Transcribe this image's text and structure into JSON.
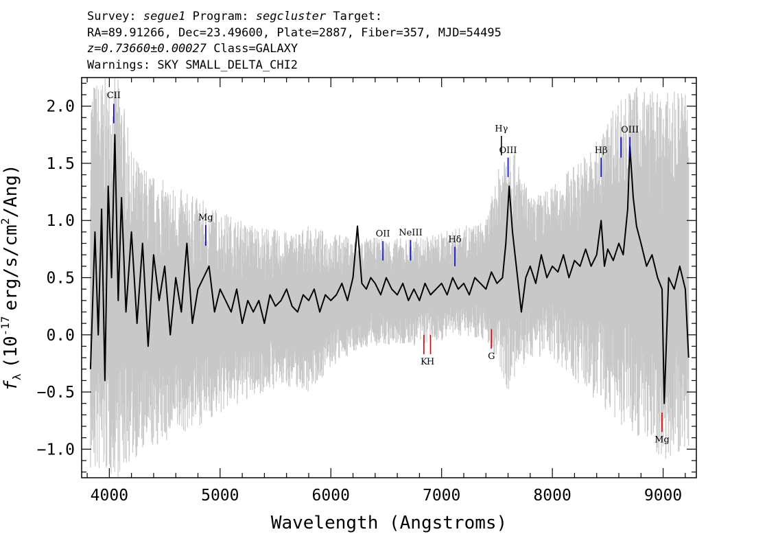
{
  "header": {
    "survey_label": "Survey:",
    "survey": "segue1",
    "program_label": "Program:",
    "program": "segcluster",
    "target_label": "Target:",
    "line2": "RA=89.91266, Dec=23.49600, Plate=2887, Fiber=357, MJD=54495",
    "redshift": "z=0.73660±0.00027",
    "class_text": "Class=GALAXY",
    "warnings": "Warnings: SKY SMALL_DELTA_CHI2"
  },
  "chart_data": {
    "type": "line",
    "xlabel": "Wavelength (Angstroms)",
    "ylabel_prefix": "f",
    "ylabel_sub": "λ",
    "ylabel_body": "(10",
    "ylabel_exp": "-17",
    "ylabel_unit": "erg/s/cm",
    "ylabel_unit_exp": "2",
    "ylabel_tail": "/Ang)",
    "xlim": [
      3750,
      9300
    ],
    "ylim": [
      -1.25,
      2.25
    ],
    "xticks": [
      4000,
      5000,
      6000,
      7000,
      8000,
      9000
    ],
    "xtick_labels": [
      "4000",
      "5000",
      "6000",
      "7000",
      "8000",
      "9000"
    ],
    "yticks": [
      -1.0,
      -0.5,
      0.0,
      0.5,
      1.0,
      1.5,
      2.0
    ],
    "ytick_labels": [
      "−1.0",
      "−0.5",
      "0.0",
      "0.5",
      "1.0",
      "1.5",
      "2.0"
    ],
    "grid": false,
    "series": [
      {
        "name": "",
        "color": "#000000",
        "x": [
          3830,
          3870,
          3900,
          3930,
          3960,
          3990,
          4020,
          4050,
          4080,
          4110,
          4150,
          4200,
          4250,
          4300,
          4350,
          4400,
          4450,
          4500,
          4550,
          4600,
          4650,
          4700,
          4750,
          4800,
          4850,
          4900,
          4950,
          5000,
          5050,
          5100,
          5150,
          5200,
          5250,
          5300,
          5350,
          5400,
          5450,
          5500,
          5550,
          5600,
          5650,
          5700,
          5750,
          5800,
          5850,
          5900,
          5950,
          6000,
          6050,
          6100,
          6150,
          6200,
          6240,
          6280,
          6320,
          6360,
          6400,
          6450,
          6500,
          6550,
          6600,
          6650,
          6700,
          6750,
          6800,
          6850,
          6900,
          6950,
          7000,
          7050,
          7100,
          7150,
          7200,
          7250,
          7300,
          7350,
          7400,
          7450,
          7500,
          7550,
          7580,
          7610,
          7640,
          7680,
          7720,
          7760,
          7800,
          7850,
          7900,
          7950,
          8000,
          8050,
          8100,
          8150,
          8200,
          8250,
          8300,
          8350,
          8400,
          8440,
          8470,
          8500,
          8550,
          8600,
          8640,
          8680,
          8700,
          8730,
          8760,
          8800,
          8850,
          8900,
          8950,
          8990,
          9010,
          9050,
          9100,
          9150,
          9200,
          9230
        ],
        "y": [
          -0.3,
          0.9,
          0.0,
          1.1,
          -0.4,
          1.3,
          0.5,
          1.75,
          0.3,
          1.2,
          0.2,
          0.9,
          0.1,
          0.8,
          -0.1,
          0.7,
          0.3,
          0.6,
          0.0,
          0.5,
          0.2,
          0.8,
          0.1,
          0.4,
          0.5,
          0.6,
          0.2,
          0.4,
          0.3,
          0.2,
          0.4,
          0.1,
          0.3,
          0.2,
          0.3,
          0.1,
          0.35,
          0.25,
          0.3,
          0.4,
          0.25,
          0.2,
          0.35,
          0.3,
          0.4,
          0.2,
          0.35,
          0.3,
          0.35,
          0.45,
          0.3,
          0.5,
          0.95,
          0.45,
          0.4,
          0.5,
          0.45,
          0.35,
          0.5,
          0.4,
          0.35,
          0.45,
          0.3,
          0.4,
          0.3,
          0.45,
          0.35,
          0.4,
          0.45,
          0.35,
          0.5,
          0.4,
          0.45,
          0.35,
          0.5,
          0.45,
          0.4,
          0.55,
          0.45,
          0.5,
          0.8,
          1.3,
          0.9,
          0.55,
          0.2,
          0.5,
          0.6,
          0.45,
          0.7,
          0.5,
          0.6,
          0.55,
          0.7,
          0.5,
          0.65,
          0.6,
          0.75,
          0.6,
          0.7,
          1.0,
          0.6,
          0.75,
          0.65,
          0.8,
          0.7,
          1.1,
          1.65,
          1.2,
          0.95,
          0.8,
          0.6,
          0.7,
          0.5,
          0.4,
          -0.6,
          0.5,
          0.4,
          0.6,
          0.4,
          -0.2
        ]
      }
    ],
    "error_band": {
      "name": "",
      "color": "#c8c8c8",
      "x": [
        3830,
        3900,
        4000,
        4100,
        4200,
        4400,
        4600,
        4800,
        5000,
        5200,
        5400,
        5600,
        5800,
        6000,
        6200,
        6400,
        6600,
        6800,
        7000,
        7200,
        7400,
        7600,
        7800,
        8000,
        8200,
        8400,
        8600,
        8800,
        9000,
        9230
      ],
      "upper": [
        2.25,
        2.25,
        2.25,
        2.25,
        1.6,
        1.4,
        1.3,
        1.2,
        1.1,
        1.0,
        0.95,
        0.9,
        0.95,
        0.9,
        0.85,
        0.85,
        0.85,
        0.85,
        0.9,
        0.95,
        1.0,
        1.8,
        1.2,
        1.3,
        1.5,
        1.7,
        2.1,
        2.2,
        2.1,
        2.2
      ],
      "lower": [
        -1.25,
        -1.25,
        -1.25,
        -1.25,
        -1.1,
        -1.0,
        -0.9,
        -0.8,
        -0.7,
        -0.6,
        -0.5,
        -0.45,
        -0.5,
        -0.3,
        -0.15,
        -0.1,
        -0.1,
        -0.1,
        -0.05,
        0.0,
        -0.05,
        -0.5,
        -0.2,
        -0.2,
        -0.4,
        -0.6,
        -0.8,
        -0.9,
        -1.1,
        -1.0
      ]
    },
    "lines": [
      {
        "name": "CII",
        "x": 4040,
        "color": "#0000cc",
        "y_from": 1.85,
        "y_to": 2.02,
        "label_y": 2.07
      },
      {
        "name": "Mg",
        "x": 4870,
        "color": "#0000cc",
        "y_from": 0.78,
        "y_to": 0.96,
        "label_y": 1.0
      },
      {
        "name": "OII",
        "x": 6470,
        "color": "#0000cc",
        "y_from": 0.65,
        "y_to": 0.82,
        "label_y": 0.86
      },
      {
        "name": "NeIII",
        "x": 6720,
        "color": "#0000cc",
        "y_from": 0.65,
        "y_to": 0.83,
        "label_y": 0.87
      },
      {
        "name": "Hδ",
        "x": 7120,
        "color": "#0000cc",
        "y_from": 0.6,
        "y_to": 0.77,
        "label_y": 0.81
      },
      {
        "name": "Hγ",
        "x": 7540,
        "color": "#000000",
        "y_from": 1.57,
        "y_to": 1.74,
        "label_y": 1.78
      },
      {
        "name": "OIII",
        "x": 7600,
        "color": "#0000cc",
        "y_from": 1.38,
        "y_to": 1.55,
        "label_y": 1.59
      },
      {
        "name": "Hβ",
        "x": 8440,
        "color": "#0000cc",
        "y_from": 1.38,
        "y_to": 1.55,
        "label_y": 1.59
      },
      {
        "name": "OIII",
        "x": 8700,
        "color": "#0000cc",
        "y_from": 1.55,
        "y_to": 1.73,
        "label_y": 1.77
      },
      {
        "name": "",
        "x": 8620,
        "color": "#0000cc",
        "y_from": 1.55,
        "y_to": 1.73
      },
      {
        "name": "K",
        "x": 6840,
        "color": "#dd0000",
        "y_from": -0.17,
        "y_to": 0.0,
        "label_y": -0.26
      },
      {
        "name": "H",
        "x": 6900,
        "color": "#dd0000",
        "y_from": -0.17,
        "y_to": 0.0,
        "label_y": -0.26
      },
      {
        "name": "G",
        "x": 7450,
        "color": "#dd0000",
        "y_from": -0.12,
        "y_to": 0.05,
        "label_y": -0.21
      },
      {
        "name": "Mg",
        "x": 8990,
        "color": "#dd0000",
        "y_from": -0.85,
        "y_to": -0.68,
        "label_y": -0.94
      }
    ]
  }
}
